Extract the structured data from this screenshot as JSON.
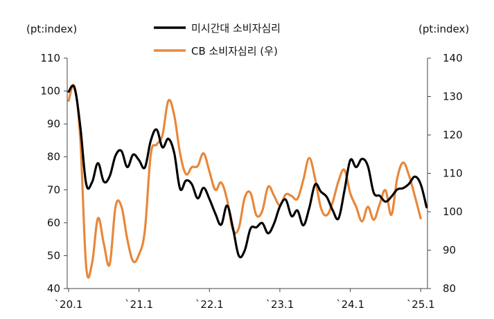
{
  "left_unit": "(pt:index)",
  "right_unit": "(pt:index)",
  "chart_data": {
    "type": "line",
    "title": "",
    "x_tick_labels": [
      "`20.1",
      "`21.1",
      "`22.1",
      "`23.1",
      "`24.1",
      "`25.1"
    ],
    "x_range": [
      "2020-01",
      "2025-03"
    ],
    "y_left": {
      "min": 40,
      "max": 110,
      "ticks": [
        40,
        50,
        60,
        70,
        80,
        90,
        100,
        110
      ]
    },
    "y_right": {
      "min": 80,
      "max": 140,
      "ticks": [
        80,
        90,
        100,
        110,
        120,
        130,
        140
      ]
    },
    "legend_placement": "top-center",
    "grid": false,
    "series": [
      {
        "name": "미시간대 소비자심리",
        "axis": "left",
        "color": "#000000",
        "values": [
          99.8,
          101.0,
          89.1,
          71.8,
          72.3,
          78.1,
          72.5,
          74.1,
          80.4,
          81.8,
          76.9,
          80.7,
          79.0,
          76.8,
          84.9,
          88.3,
          82.9,
          85.5,
          81.2,
          70.3,
          72.8,
          71.7,
          67.4,
          70.6,
          67.2,
          62.8,
          59.4,
          65.2,
          58.4,
          50.0,
          51.5,
          58.2,
          58.6,
          59.9,
          56.8,
          59.7,
          64.9,
          67.0,
          62.0,
          63.7,
          59.2,
          64.4,
          71.6,
          69.4,
          67.8,
          63.8,
          61.3,
          69.7,
          79.0,
          76.9,
          79.4,
          77.2,
          69.1,
          68.2,
          66.4,
          67.9,
          70.1,
          70.5,
          71.8,
          74.0,
          71.7,
          64.7
        ]
      },
      {
        "name": "CB 소비자심리 (우)",
        "axis": "right",
        "color": "#E8873A",
        "values": [
          128.9,
          132.6,
          118.8,
          85.7,
          86.6,
          98.3,
          91.7,
          86.3,
          101.3,
          101.4,
          92.9,
          87.1,
          88.9,
          95.2,
          114.9,
          117.5,
          120.0,
          128.9,
          125.1,
          115.2,
          109.8,
          111.6,
          111.9,
          115.2,
          110.5,
          105.7,
          107.6,
          103.2,
          95.3,
          95.7,
          103.6,
          104.9,
          99.1,
          100.2,
          106.5,
          104.2,
          101.7,
          104.5,
          104.1,
          103.4,
          108.3,
          114.0,
          108.7,
          101.0,
          99.1,
          102.5,
          108.0,
          110.9,
          104.8,
          101.3,
          97.5,
          101.3,
          97.9,
          101.9,
          105.6,
          99.2,
          108.7,
          112.8,
          109.5,
          104.1,
          98.3
        ]
      }
    ]
  }
}
